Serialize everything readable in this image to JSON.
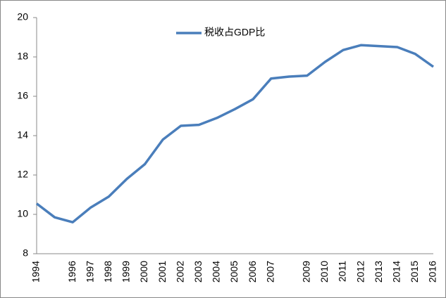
{
  "chart_data": {
    "type": "line",
    "categories": [
      "1994",
      null,
      "1996",
      "1997",
      "1998",
      "1999",
      "2000",
      "2001",
      "2002",
      "2003",
      "2004",
      "2005",
      "2006",
      "2007",
      null,
      "2009",
      "2010",
      "2011",
      "2012",
      "2013",
      "2014",
      "2015",
      "2016"
    ],
    "series": [
      {
        "name": "税收占GDP比",
        "color": "#4a7ebb",
        "values": [
          10.55,
          9.85,
          9.6,
          10.35,
          10.9,
          11.8,
          12.55,
          13.8,
          14.5,
          14.55,
          14.9,
          15.35,
          15.85,
          16.9,
          17.0,
          17.05,
          17.75,
          18.35,
          18.6,
          18.55,
          18.5,
          18.15,
          17.5
        ]
      }
    ],
    "ylim": [
      8,
      20
    ],
    "yticks": [
      8,
      10,
      12,
      14,
      16,
      18,
      20
    ],
    "grid": false,
    "legend": "top"
  }
}
